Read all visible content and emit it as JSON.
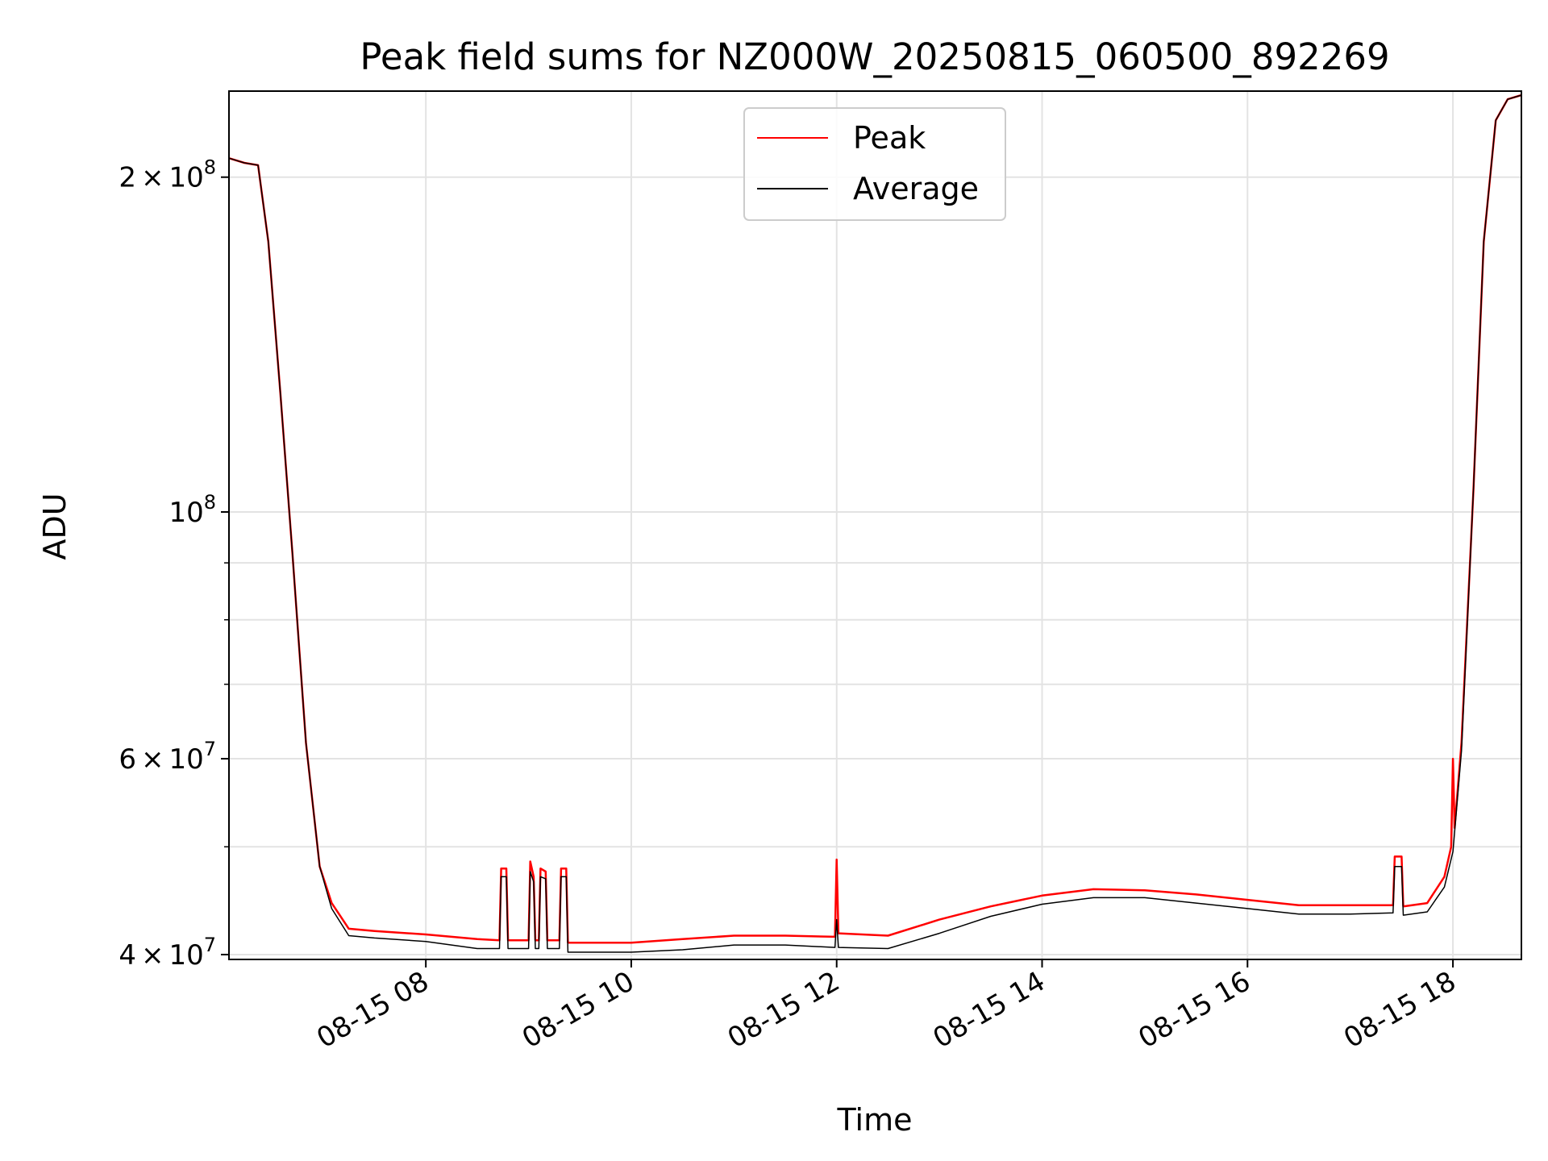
{
  "chart_data": {
    "type": "line",
    "title": "Peak field sums for NZ000W_20250815_060500_892269",
    "xlabel": "Time",
    "ylabel": "ADU",
    "y_scale": "log",
    "ylim": [
      39600000,
      239000000
    ],
    "xlim": [
      "08-15 06:05",
      "08-15 18:40"
    ],
    "grid": true,
    "legend_position": "top-center",
    "x_ticks": [
      {
        "t": "08-15 08:00",
        "label": "08-15 08"
      },
      {
        "t": "08-15 10:00",
        "label": "08-15 10"
      },
      {
        "t": "08-15 12:00",
        "label": "08-15 12"
      },
      {
        "t": "08-15 14:00",
        "label": "08-15 14"
      },
      {
        "t": "08-15 16:00",
        "label": "08-15 16"
      },
      {
        "t": "08-15 18:00",
        "label": "08-15 18"
      }
    ],
    "y_ticks": [
      {
        "value": 200000000,
        "mantissa": "2",
        "exponent": "8"
      },
      {
        "value": 100000000,
        "mantissa": "",
        "exponent": "8"
      },
      {
        "value": 60000000,
        "mantissa": "6",
        "exponent": "7"
      },
      {
        "value": 40000000,
        "mantissa": "4",
        "exponent": "7"
      }
    ],
    "y_minor_ticks": [
      50000000,
      70000000,
      80000000,
      90000000
    ],
    "series": [
      {
        "name": "Peak",
        "color": "#ff0000",
        "points": [
          [
            "08-15 06:05",
            208000000
          ],
          [
            "08-15 06:14",
            206000000
          ],
          [
            "08-15 06:22",
            205000000
          ],
          [
            "08-15 06:28",
            175000000
          ],
          [
            "08-15 06:35",
            128000000
          ],
          [
            "08-15 06:42",
            92000000
          ],
          [
            "08-15 06:50",
            62000000
          ],
          [
            "08-15 06:58",
            48000000
          ],
          [
            "08-15 07:05",
            44500000
          ],
          [
            "08-15 07:15",
            42200000
          ],
          [
            "08-15 07:30",
            42000000
          ],
          [
            "08-15 08:00",
            41700000
          ],
          [
            "08-15 08:30",
            41300000
          ],
          [
            "08-15 08:43",
            41200000
          ],
          [
            "08-15 08:44",
            47800000
          ],
          [
            "08-15 08:47",
            47800000
          ],
          [
            "08-15 08:48",
            41200000
          ],
          [
            "08-15 09:00",
            41200000
          ],
          [
            "08-15 09:01",
            48500000
          ],
          [
            "08-15 09:03",
            47000000
          ],
          [
            "08-15 09:04",
            41200000
          ],
          [
            "08-15 09:06",
            41200000
          ],
          [
            "08-15 09:07",
            47800000
          ],
          [
            "08-15 09:10",
            47500000
          ],
          [
            "08-15 09:11",
            41200000
          ],
          [
            "08-15 09:18",
            41200000
          ],
          [
            "08-15 09:19",
            47800000
          ],
          [
            "08-15 09:22",
            47800000
          ],
          [
            "08-15 09:23",
            41000000
          ],
          [
            "08-15 10:00",
            41000000
          ],
          [
            "08-15 10:30",
            41300000
          ],
          [
            "08-15 11:00",
            41600000
          ],
          [
            "08-15 11:30",
            41600000
          ],
          [
            "08-15 11:59",
            41500000
          ],
          [
            "08-15 12:00",
            48700000
          ],
          [
            "08-15 12:01",
            41800000
          ],
          [
            "08-15 12:30",
            41600000
          ],
          [
            "08-15 13:00",
            43000000
          ],
          [
            "08-15 13:30",
            44200000
          ],
          [
            "08-15 14:00",
            45200000
          ],
          [
            "08-15 14:30",
            45800000
          ],
          [
            "08-15 15:00",
            45700000
          ],
          [
            "08-15 15:30",
            45300000
          ],
          [
            "08-15 16:00",
            44800000
          ],
          [
            "08-15 16:30",
            44300000
          ],
          [
            "08-15 17:00",
            44300000
          ],
          [
            "08-15 17:25",
            44300000
          ],
          [
            "08-15 17:26",
            49000000
          ],
          [
            "08-15 17:30",
            49000000
          ],
          [
            "08-15 17:31",
            44200000
          ],
          [
            "08-15 17:45",
            44500000
          ],
          [
            "08-15 17:55",
            47000000
          ],
          [
            "08-15 17:59",
            50000000
          ],
          [
            "08-15 18:00",
            60000000
          ],
          [
            "08-15 18:01",
            52000000
          ],
          [
            "08-15 18:05",
            62000000
          ],
          [
            "08-15 18:12",
            105000000
          ],
          [
            "08-15 18:18",
            175000000
          ],
          [
            "08-15 18:25",
            225000000
          ],
          [
            "08-15 18:32",
            235000000
          ],
          [
            "08-15 18:40",
            237000000
          ]
        ]
      },
      {
        "name": "Average",
        "color": "#000000",
        "points": [
          [
            "08-15 06:05",
            208000000
          ],
          [
            "08-15 06:14",
            206000000
          ],
          [
            "08-15 06:22",
            205000000
          ],
          [
            "08-15 06:28",
            175000000
          ],
          [
            "08-15 06:35",
            128000000
          ],
          [
            "08-15 06:42",
            92000000
          ],
          [
            "08-15 06:50",
            62000000
          ],
          [
            "08-15 06:58",
            48000000
          ],
          [
            "08-15 07:05",
            44000000
          ],
          [
            "08-15 07:15",
            41600000
          ],
          [
            "08-15 07:30",
            41400000
          ],
          [
            "08-15 08:00",
            41100000
          ],
          [
            "08-15 08:30",
            40500000
          ],
          [
            "08-15 08:43",
            40500000
          ],
          [
            "08-15 08:44",
            47000000
          ],
          [
            "08-15 08:47",
            47000000
          ],
          [
            "08-15 08:48",
            40500000
          ],
          [
            "08-15 09:00",
            40500000
          ],
          [
            "08-15 09:01",
            47500000
          ],
          [
            "08-15 09:03",
            46500000
          ],
          [
            "08-15 09:04",
            40500000
          ],
          [
            "08-15 09:06",
            40500000
          ],
          [
            "08-15 09:07",
            47000000
          ],
          [
            "08-15 09:10",
            46800000
          ],
          [
            "08-15 09:11",
            40500000
          ],
          [
            "08-15 09:18",
            40500000
          ],
          [
            "08-15 09:19",
            47000000
          ],
          [
            "08-15 09:22",
            47000000
          ],
          [
            "08-15 09:23",
            40200000
          ],
          [
            "08-15 10:00",
            40200000
          ],
          [
            "08-15 10:30",
            40400000
          ],
          [
            "08-15 11:00",
            40800000
          ],
          [
            "08-15 11:30",
            40800000
          ],
          [
            "08-15 11:59",
            40600000
          ],
          [
            "08-15 12:00",
            43000000
          ],
          [
            "08-15 12:01",
            40600000
          ],
          [
            "08-15 12:30",
            40500000
          ],
          [
            "08-15 13:00",
            41800000
          ],
          [
            "08-15 13:30",
            43300000
          ],
          [
            "08-15 14:00",
            44400000
          ],
          [
            "08-15 14:30",
            45000000
          ],
          [
            "08-15 15:00",
            45000000
          ],
          [
            "08-15 15:30",
            44500000
          ],
          [
            "08-15 16:00",
            44000000
          ],
          [
            "08-15 16:30",
            43500000
          ],
          [
            "08-15 17:00",
            43500000
          ],
          [
            "08-15 17:25",
            43600000
          ],
          [
            "08-15 17:26",
            48000000
          ],
          [
            "08-15 17:30",
            48000000
          ],
          [
            "08-15 17:31",
            43400000
          ],
          [
            "08-15 17:45",
            43700000
          ],
          [
            "08-15 17:55",
            46000000
          ],
          [
            "08-15 18:00",
            49500000
          ],
          [
            "08-15 18:05",
            61000000
          ],
          [
            "08-15 18:12",
            105000000
          ],
          [
            "08-15 18:18",
            175000000
          ],
          [
            "08-15 18:25",
            225000000
          ],
          [
            "08-15 18:32",
            235000000
          ],
          [
            "08-15 18:40",
            237000000
          ]
        ]
      }
    ]
  }
}
